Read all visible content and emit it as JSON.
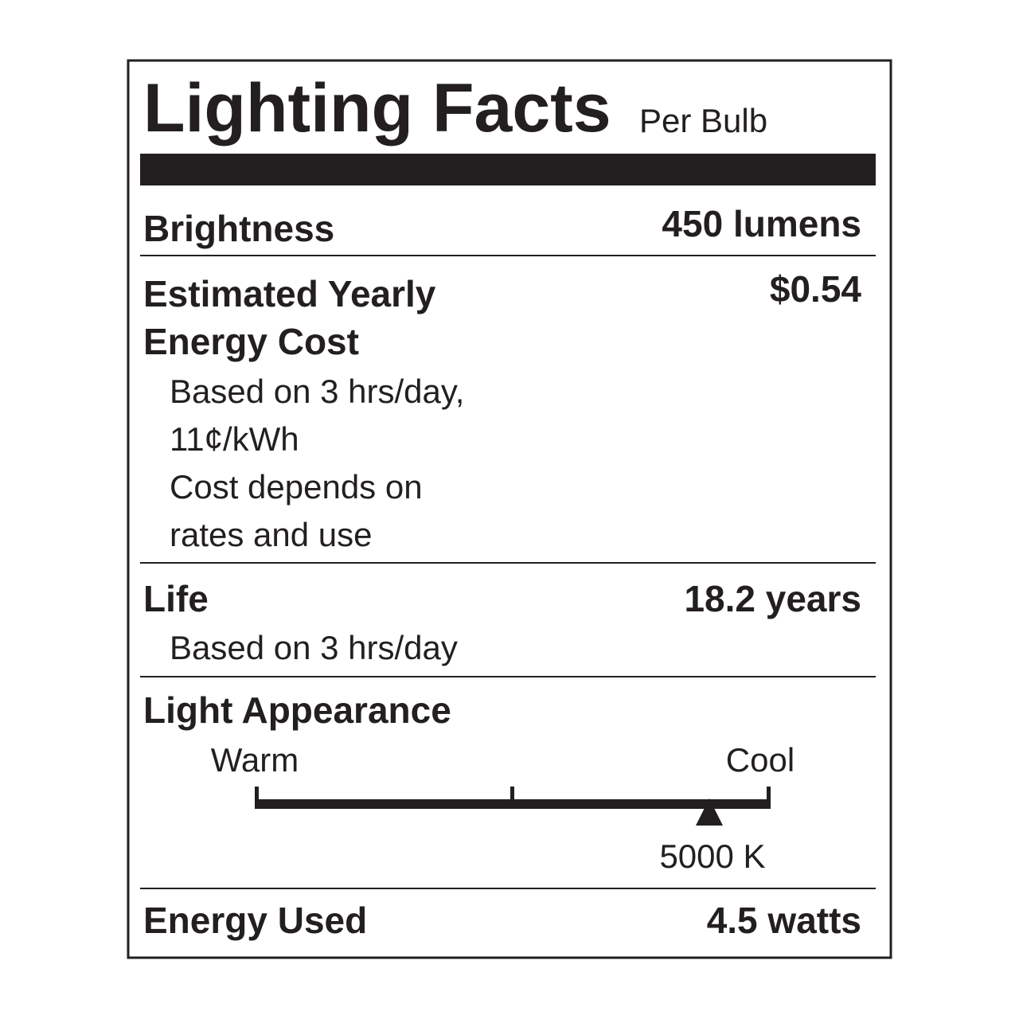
{
  "header": {
    "title": "Lighting Facts",
    "subtitle": "Per Bulb"
  },
  "brightness": {
    "label": "Brightness",
    "value": "450 lumens"
  },
  "energy_cost": {
    "label_lines": [
      "Estimated Yearly",
      "Energy Cost"
    ],
    "value": "$0.54",
    "notes": [
      "Based on 3 hrs/day,",
      "11¢/kWh",
      "Cost depends on",
      "rates and use"
    ]
  },
  "life": {
    "label": "Life",
    "value": "18.2 years",
    "note": "Based on 3 hrs/day"
  },
  "appearance": {
    "label": "Light Appearance",
    "warm": "Warm",
    "cool": "Cool",
    "value": "5000 K"
  },
  "energy_used": {
    "label": "Energy Used",
    "value": "4.5 watts"
  }
}
